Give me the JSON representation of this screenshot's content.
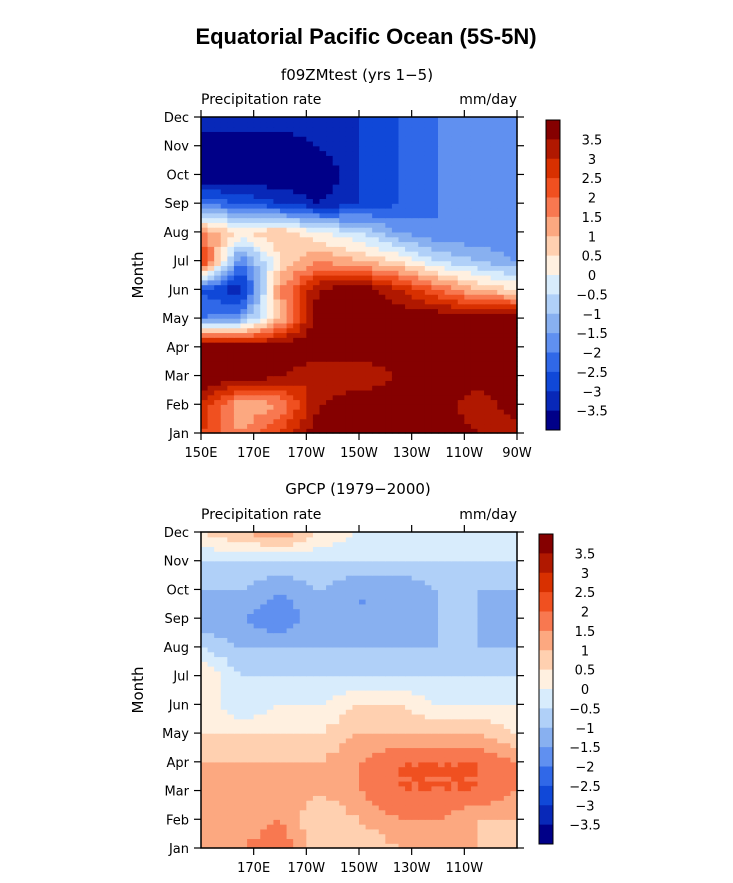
{
  "page_title": "Equatorial Pacific Ocean (5S-5N)",
  "colorbar": {
    "labels": [
      "3.5",
      "3",
      "2.5",
      "2",
      "1.5",
      "1",
      "0.5",
      "0",
      "−0.5",
      "−1",
      "−1.5",
      "−2",
      "−2.5",
      "−3",
      "−3.5"
    ],
    "colors": [
      "#850000",
      "#b01800",
      "#d83000",
      "#f05020",
      "#f87850",
      "#fca880",
      "#ffd0b0",
      "#fff0e0",
      "#d8ecfc",
      "#b0d0f8",
      "#88b0f0",
      "#6090f0",
      "#3068e8",
      "#1048d8",
      "#0828b8",
      "#000088"
    ]
  },
  "chart_data": [
    {
      "type": "heatmap",
      "subtitle": "f09ZMtest (yrs 1−5)",
      "left_label": "Precipitation rate",
      "right_label": "mm/day",
      "ylabel": "Month",
      "xlabel": "",
      "x_tick_labels": [
        "150E",
        "170E",
        "170W",
        "150W",
        "130W",
        "110W",
        "90W"
      ],
      "x": [
        150,
        165,
        180,
        195,
        210,
        225,
        240,
        255,
        270
      ],
      "y": [
        "Jan",
        "Feb",
        "Mar",
        "Apr",
        "May",
        "Jun",
        "Jul",
        "Aug",
        "Sep",
        "Oct",
        "Nov",
        "Dec"
      ],
      "values": [
        [
          2.5,
          1.5,
          2.5,
          4,
          4,
          4,
          4,
          3.5,
          3
        ],
        [
          3,
          1,
          1.5,
          3.5,
          4,
          4,
          4,
          3,
          4
        ],
        [
          4,
          4,
          3.5,
          3,
          3,
          3.5,
          4,
          4,
          4
        ],
        [
          4,
          4,
          4,
          4,
          4,
          4,
          4,
          4,
          4
        ],
        [
          -2,
          -1.5,
          1,
          4,
          4,
          4,
          4,
          4,
          4
        ],
        [
          -2.5,
          -3.5,
          1.5,
          3.5,
          4,
          3,
          2,
          1,
          0.5
        ],
        [
          3,
          -2,
          0.5,
          1.5,
          1,
          0.5,
          -0.5,
          -1,
          -1.5
        ],
        [
          1.5,
          0.5,
          1,
          0,
          -0.5,
          -1.5,
          -2,
          -2,
          -2
        ],
        [
          -2,
          -2.5,
          -3,
          -3.5,
          -3,
          -2.5,
          -2,
          -2,
          -2
        ],
        [
          -4,
          -4,
          -4,
          -4,
          -3,
          -2.5,
          -2,
          -2,
          -2
        ],
        [
          -4,
          -4,
          -4,
          -3.5,
          -3,
          -2.5,
          -2,
          -2,
          -2
        ],
        [
          -3,
          -3,
          -3,
          -3,
          -3,
          -2.5,
          -2,
          -2,
          -2
        ]
      ],
      "levels": [
        -3.5,
        -3,
        -2.5,
        -2,
        -1.5,
        -1,
        -0.5,
        0,
        0.5,
        1,
        1.5,
        2,
        2.5,
        3,
        3.5
      ],
      "xlim": [
        150,
        270
      ]
    },
    {
      "type": "heatmap",
      "subtitle": "GPCP (1979−2000)",
      "left_label": "Precipitation rate",
      "right_label": "mm/day",
      "ylabel": "Month",
      "xlabel": "",
      "x_tick_labels": [
        "170E",
        "170W",
        "150W",
        "130W",
        "110W"
      ],
      "x": [
        150,
        165,
        180,
        195,
        210,
        225,
        240,
        255,
        270
      ],
      "y": [
        "Jan",
        "Feb",
        "Mar",
        "Apr",
        "May",
        "Jun",
        "Jul",
        "Aug",
        "Sep",
        "Oct",
        "Nov",
        "Dec"
      ],
      "values": [
        [
          1,
          1.5,
          2,
          0.5,
          0.5,
          1,
          1,
          1,
          0.5
        ],
        [
          1.5,
          1,
          1.5,
          0.5,
          1,
          1.5,
          1.5,
          1,
          1
        ],
        [
          1.5,
          1.5,
          1.5,
          1,
          1.5,
          2,
          2,
          2,
          1.5
        ],
        [
          1,
          1,
          1,
          1,
          1.5,
          2,
          2,
          2,
          1.5
        ],
        [
          0.5,
          0.5,
          0.5,
          0.5,
          1,
          1,
          1,
          1,
          0.5
        ],
        [
          0.5,
          -0.5,
          0,
          0,
          0.5,
          0.5,
          0,
          0,
          0
        ],
        [
          0.5,
          -0.5,
          -0.5,
          -0.5,
          -0.5,
          -0.5,
          -0.5,
          -0.5,
          -0.5
        ],
        [
          -0.5,
          -1,
          -1,
          -1,
          -1,
          -1,
          -1,
          -1,
          -1
        ],
        [
          -1.5,
          -1.5,
          -2,
          -1,
          -1.5,
          -1.5,
          -1,
          -1,
          -1.5
        ],
        [
          -1,
          -1,
          -1.5,
          -1,
          -1.5,
          -1.5,
          -1,
          -1,
          -1
        ],
        [
          -0.5,
          -0.5,
          -0.5,
          -0.5,
          -0.5,
          -0.5,
          -0.5,
          -0.5,
          -0.5
        ],
        [
          0.5,
          1,
          1.5,
          0.5,
          0,
          0,
          0,
          0,
          0
        ]
      ],
      "levels": [
        -3.5,
        -3,
        -2.5,
        -2,
        -1.5,
        -1,
        -0.5,
        0,
        0.5,
        1,
        1.5,
        2,
        2.5,
        3,
        3.5
      ],
      "xlim": [
        150,
        270
      ]
    }
  ]
}
